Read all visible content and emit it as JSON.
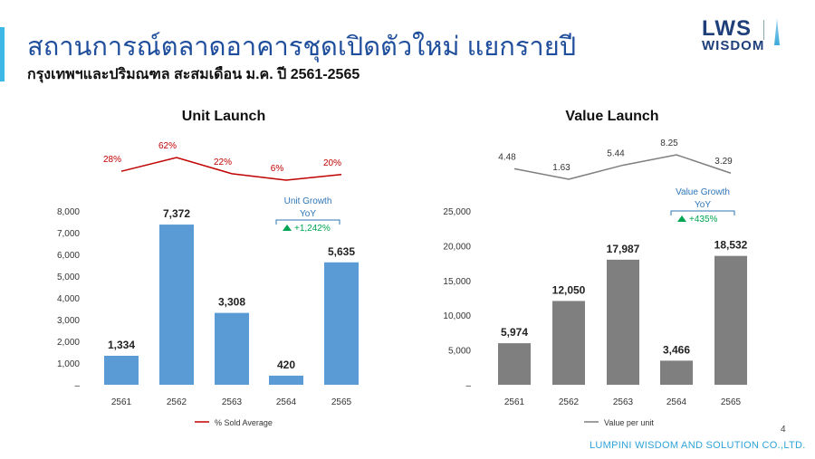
{
  "header": {
    "title": "สถานการณ์ตลาดอาคารชุดเปิดตัวใหม่ แยกรายปี",
    "subtitle": "กรุงเทพฯและปริมณฑล สะสมเดือน ม.ค. ปี 2561-2565",
    "logo_line1": "LWS",
    "logo_line2": "WISDOM"
  },
  "footer": {
    "company": "LUMPINI WISDOM AND SOLUTION CO.,LTD.",
    "page": "4"
  },
  "chart_data": [
    {
      "type": "bar",
      "title": "Unit Launch",
      "categories": [
        "2561",
        "2562",
        "2563",
        "2564",
        "2565"
      ],
      "values": [
        1334,
        7372,
        3308,
        420,
        5635
      ],
      "value_labels": [
        "1,334",
        "7,372",
        "3,308",
        "420",
        "5,635"
      ],
      "ylim": [
        0,
        8000
      ],
      "yticks": [
        "–",
        "1,000",
        "2,000",
        "3,000",
        "4,000",
        "5,000",
        "6,000",
        "7,000",
        "8,000"
      ],
      "bar_color": "#5b9bd5",
      "line": {
        "name": "% Sold Average",
        "values": [
          28,
          62,
          22,
          6,
          20
        ],
        "labels": [
          "28%",
          "62%",
          "22%",
          "6%",
          "20%"
        ],
        "color": "#c00000"
      },
      "annotation": {
        "title": "Unit Growth",
        "sub": "YoY",
        "value": "+1,242%",
        "color": "#2e75b6",
        "value_color": "#00a651"
      },
      "grid": false,
      "legend": "bottom"
    },
    {
      "type": "bar",
      "title": "Value Launch",
      "categories": [
        "2561",
        "2562",
        "2563",
        "2564",
        "2565"
      ],
      "values": [
        5974,
        12050,
        17987,
        3466,
        18532
      ],
      "value_labels": [
        "5,974",
        "12,050",
        "17,987",
        "3,466",
        "18,532"
      ],
      "ylim": [
        0,
        25000
      ],
      "yticks": [
        "–",
        "5,000",
        "10,000",
        "15,000",
        "20,000",
        "25,000"
      ],
      "bar_color": "#7f7f7f",
      "line": {
        "name": "Value per unit",
        "values": [
          4.48,
          1.63,
          5.44,
          8.25,
          3.29
        ],
        "labels": [
          "4.48",
          "1.63",
          "5.44",
          "8.25",
          "3.29"
        ],
        "color": "#7f7f7f"
      },
      "annotation": {
        "title": "Value Growth",
        "sub": "YoY",
        "value": "+435%",
        "color": "#2e75b6",
        "value_color": "#00a651"
      },
      "grid": false,
      "legend": "bottom"
    }
  ]
}
